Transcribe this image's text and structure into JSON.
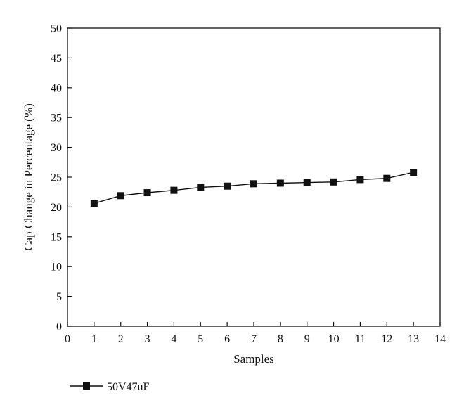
{
  "chart_data": {
    "type": "line",
    "title": "",
    "xlabel": "Samples",
    "ylabel": "Cap Change in Percentage (%)",
    "xlim": [
      0,
      14
    ],
    "ylim": [
      0,
      50
    ],
    "x_ticks": [
      0,
      1,
      2,
      3,
      4,
      5,
      6,
      7,
      8,
      9,
      10,
      11,
      12,
      13,
      14
    ],
    "y_ticks": [
      0,
      5,
      10,
      15,
      20,
      25,
      30,
      35,
      40,
      45,
      50
    ],
    "grid": false,
    "legend_position": "bottom-left",
    "series": [
      {
        "name": "50V47uF",
        "marker": "square",
        "color": "#111111",
        "x": [
          1,
          2,
          3,
          4,
          5,
          6,
          7,
          8,
          9,
          10,
          11,
          12,
          13
        ],
        "y": [
          20.6,
          21.9,
          22.4,
          22.8,
          23.3,
          23.5,
          23.9,
          24.0,
          24.1,
          24.2,
          24.6,
          24.8,
          25.8
        ]
      }
    ]
  }
}
